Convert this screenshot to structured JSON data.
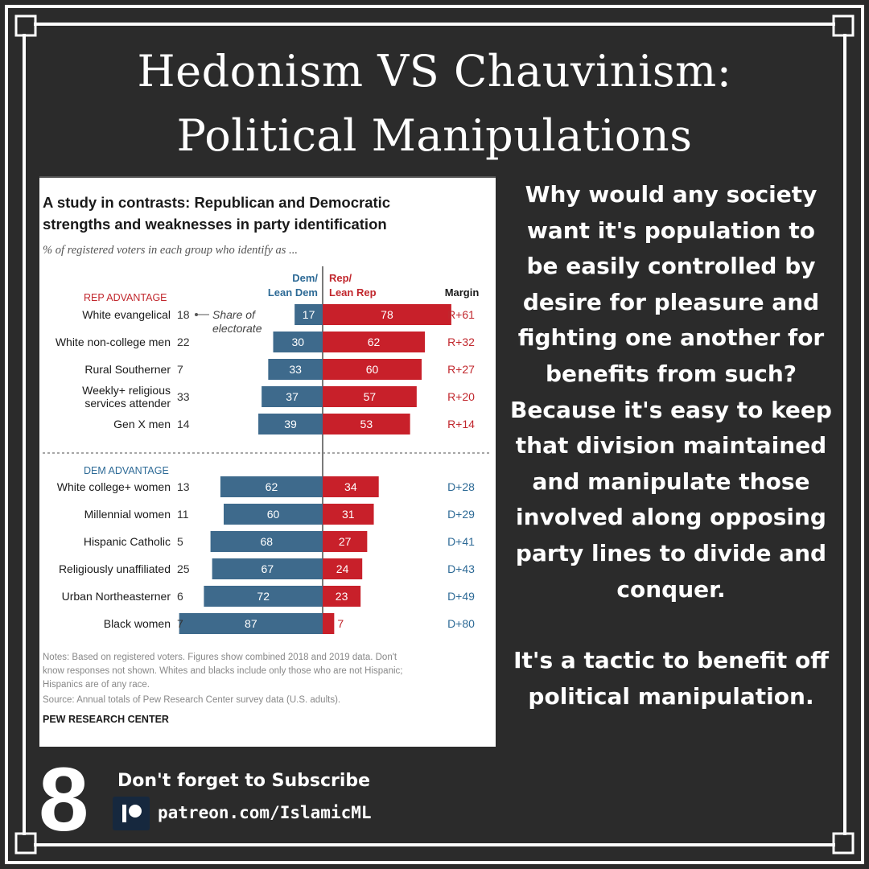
{
  "colors": {
    "background": "#2b2b2b",
    "dem_blue": "#3e6a8c",
    "rep_red": "#c8202a",
    "rep_label": "#c1272d",
    "dem_label": "#2d6a96"
  },
  "header": {
    "title_line1": "Hedonism VS Chauvinism:",
    "title_line2": "Political Manipulations"
  },
  "side_text": {
    "paragraph1": "Why would any society want it's population to be easily controlled by desire for pleasure and fighting one another for benefits from such? Because it's easy to keep that division maintained and manipulate those involved along opposing party lines to divide and conquer.",
    "paragraph2": "It's a tactic to benefit off political manipulation."
  },
  "footer": {
    "page_number": "8",
    "subscribe": "Don't forget to Subscribe",
    "patreon": "patreon.com/IslamicML",
    "patreon_icon": "patreon-logo-icon"
  },
  "chart_data": {
    "type": "bar",
    "title_line1": "A study in contrasts: Republican and Democratic",
    "title_line2": "strengths and weaknesses in party identification",
    "subtitle": "% of registered voters in each group who identify as ...",
    "dem_header": [
      "Dem/",
      "Lean Dem"
    ],
    "rep_header": [
      "Rep/",
      "Lean Rep"
    ],
    "margin_header": "Margin",
    "annotation": [
      "Share of",
      "electorate"
    ],
    "sections": [
      {
        "label": "REP ADVANTAGE",
        "rows": [
          {
            "group": [
              "White evangelical"
            ],
            "share": 18,
            "dem": 17,
            "rep": 78,
            "margin": "R+61"
          },
          {
            "group": [
              "White non-college men"
            ],
            "share": 22,
            "dem": 30,
            "rep": 62,
            "margin": "R+32"
          },
          {
            "group": [
              "Rural Southerner"
            ],
            "share": 7,
            "dem": 33,
            "rep": 60,
            "margin": "R+27"
          },
          {
            "group": [
              "Weekly+ religious",
              "services attender"
            ],
            "share": 33,
            "dem": 37,
            "rep": 57,
            "margin": "R+20"
          },
          {
            "group": [
              "Gen X men"
            ],
            "share": 14,
            "dem": 39,
            "rep": 53,
            "margin": "R+14"
          }
        ]
      },
      {
        "label": "DEM ADVANTAGE",
        "rows": [
          {
            "group": [
              "White college+ women"
            ],
            "share": 13,
            "dem": 62,
            "rep": 34,
            "margin": "D+28"
          },
          {
            "group": [
              "Millennial women"
            ],
            "share": 11,
            "dem": 60,
            "rep": 31,
            "margin": "D+29"
          },
          {
            "group": [
              "Hispanic Catholic"
            ],
            "share": 5,
            "dem": 68,
            "rep": 27,
            "margin": "D+41"
          },
          {
            "group": [
              "Religiously unaffiliated"
            ],
            "share": 25,
            "dem": 67,
            "rep": 24,
            "margin": "D+43"
          },
          {
            "group": [
              "Urban Northeasterner"
            ],
            "share": 6,
            "dem": 72,
            "rep": 23,
            "margin": "D+49"
          },
          {
            "group": [
              "Black women"
            ],
            "share": 7,
            "dem": 87,
            "rep": 7,
            "margin": "D+80"
          }
        ]
      }
    ],
    "notes": [
      "Notes: Based on registered voters. Figures show combined 2018 and 2019 data. Don't",
      "know responses not shown. Whites and blacks include only those who are not Hispanic;",
      "Hispanics are of any race.",
      "Source: Annual totals of Pew Research Center survey data (U.S. adults)."
    ],
    "source": "PEW RESEARCH CENTER"
  }
}
